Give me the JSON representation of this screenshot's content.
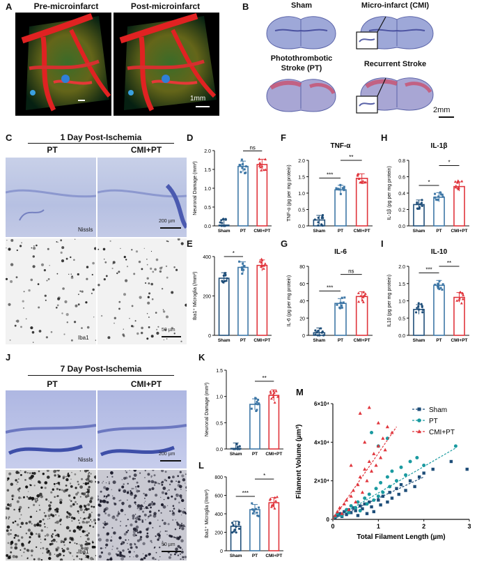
{
  "panels": {
    "A": "A",
    "B": "B",
    "C": "C",
    "D": "D",
    "E": "E",
    "F": "F",
    "G": "G",
    "H": "H",
    "I": "I",
    "J": "J",
    "K": "K",
    "L": "L",
    "M": "M"
  },
  "panel_a": {
    "title_pre": "Pre-microinfarct",
    "title_post": "Post-microinfarct",
    "scale": "1mm"
  },
  "panel_b": {
    "sham": "Sham",
    "cmi": "Micro-infarct (CMI)",
    "pt_line1": "Photothrombotic",
    "pt_line2": "Stroke (PT)",
    "recurrent": "Recurrent Stroke",
    "scale": "2mm"
  },
  "panel_c": {
    "title": "1 Day Post-Ischemia",
    "col_pt": "PT",
    "col_cmi": "CMI+PT",
    "nissl": "Nissls",
    "iba1": "Iba1",
    "scale_nissl": "200 µm",
    "scale_iba1": "50 µm"
  },
  "panel_j": {
    "title": "7 Day Post-Ischemia",
    "col_pt": "PT",
    "col_cmi": "CMI+PT",
    "nissl": "Nissls",
    "iba1": "Iba1",
    "scale_nissl": "200 µm",
    "scale_iba1": "50 µm"
  },
  "colors": {
    "sham": "#1f4e79",
    "pt": "#3e77a6",
    "cmi": "#e0353c",
    "scatter_pt": "#1a9aa0"
  },
  "bar_charts": [
    {
      "id": "D",
      "ylabel": "Neuronal Damage (mm³)",
      "title": "",
      "ylim": [
        0,
        2.0
      ],
      "ticks": [
        "0.0",
        "0.5",
        "1.0",
        "1.5",
        "2.0"
      ],
      "tickvals": [
        0,
        0.5,
        1.0,
        1.5,
        2.0
      ],
      "categories": [
        "Sham",
        "PT",
        "CMI+PT"
      ],
      "values": [
        0.02,
        1.58,
        1.63
      ],
      "sig": [
        {
          "from": 1,
          "to": 2,
          "label": "ns"
        }
      ]
    },
    {
      "id": "E",
      "ylabel": "Iba1⁺ Microglia (/mm²)",
      "title": "",
      "ylim": [
        0,
        400
      ],
      "ticks": [
        "0",
        "200",
        "400"
      ],
      "tickvals": [
        0,
        200,
        400
      ],
      "categories": [
        "Sham",
        "PT",
        "CMI+PT"
      ],
      "values": [
        290,
        345,
        355
      ],
      "sig": [
        {
          "from": 0,
          "to": 1,
          "label": "*"
        }
      ]
    },
    {
      "id": "F",
      "ylabel": "TNF-α (pg per mg protein)",
      "title": "TNF-α",
      "ylim": [
        0,
        2.0
      ],
      "ticks": [
        "0.0",
        "0.5",
        "1.0",
        "1.5",
        "2.0"
      ],
      "tickvals": [
        0,
        0.5,
        1.0,
        1.5,
        2.0
      ],
      "categories": [
        "Sham",
        "PT",
        "CMI+PT"
      ],
      "values": [
        0.18,
        1.1,
        1.45
      ],
      "sig": [
        {
          "from": 0,
          "to": 1,
          "label": "***"
        },
        {
          "from": 1,
          "to": 2,
          "label": "**"
        }
      ]
    },
    {
      "id": "G",
      "ylabel": "IL-6 (pg per mg protein)",
      "title": "IL-6",
      "ylim": [
        0,
        80
      ],
      "ticks": [
        "0",
        "20",
        "40",
        "60",
        "80"
      ],
      "tickvals": [
        0,
        20,
        40,
        60,
        80
      ],
      "categories": [
        "Sham",
        "PT",
        "CMI+PT"
      ],
      "values": [
        3,
        37,
        45
      ],
      "sig": [
        {
          "from": 0,
          "to": 1,
          "label": "***"
        },
        {
          "from": 1,
          "to": 2,
          "label": "ns"
        }
      ]
    },
    {
      "id": "H",
      "ylabel": "IL-1β (pg per mg protein)",
      "title": "IL-1β",
      "ylim": [
        0,
        0.8
      ],
      "ticks": [
        "0.0",
        "0.2",
        "0.4",
        "0.6",
        "0.8"
      ],
      "tickvals": [
        0,
        0.2,
        0.4,
        0.6,
        0.8
      ],
      "categories": [
        "Sham",
        "PT",
        "CMI+PT"
      ],
      "values": [
        0.26,
        0.35,
        0.48
      ],
      "sig": [
        {
          "from": 0,
          "to": 1,
          "label": "*"
        },
        {
          "from": 1,
          "to": 2,
          "label": "*"
        }
      ]
    },
    {
      "id": "I",
      "ylabel": "IL10 (pg per mg protein)",
      "title": "IL-10",
      "ylim": [
        0,
        2.0
      ],
      "ticks": [
        "0.0",
        "0.5",
        "1.0",
        "1.5",
        "2.0"
      ],
      "tickvals": [
        0,
        0.5,
        1.0,
        1.5,
        2.0
      ],
      "categories": [
        "Sham",
        "PT",
        "CMI+PT"
      ],
      "values": [
        0.75,
        1.45,
        1.1
      ],
      "sig": [
        {
          "from": 0,
          "to": 1,
          "label": "***"
        },
        {
          "from": 1,
          "to": 2,
          "label": "**"
        }
      ]
    },
    {
      "id": "K",
      "ylabel": "Neuronal Damage (mm³)",
      "title": "",
      "ylim": [
        0,
        1.5
      ],
      "ticks": [
        "0.0",
        "0.5",
        "1.0",
        "1.5"
      ],
      "tickvals": [
        0,
        0.5,
        1.0,
        1.5
      ],
      "categories": [
        "Sham",
        "PT",
        "CMI+PT"
      ],
      "values": [
        0.01,
        0.85,
        1.02
      ],
      "sig": [
        {
          "from": 1,
          "to": 2,
          "label": "**"
        }
      ]
    },
    {
      "id": "L",
      "ylabel": "Iba1⁺ Microglia (/mm²)",
      "title": "",
      "ylim": [
        0,
        800
      ],
      "ticks": [
        "0",
        "200",
        "400",
        "600",
        "800"
      ],
      "tickvals": [
        0,
        200,
        400,
        600,
        800
      ],
      "categories": [
        "Sham",
        "PT",
        "CMI+PT"
      ],
      "values": [
        265,
        445,
        520
      ],
      "sig": [
        {
          "from": 0,
          "to": 1,
          "label": "***"
        },
        {
          "from": 1,
          "to": 2,
          "label": "*"
        }
      ]
    }
  ],
  "chart_data": {
    "type": "scatter",
    "xlabel": "Total Filament Length (µm)",
    "ylabel": "Filament Volume (µm³)",
    "xlim": [
      0,
      3
    ],
    "ylim": [
      0,
      60000
    ],
    "xticks": [
      "0",
      "1",
      "2",
      "3"
    ],
    "xtickvals": [
      0,
      1,
      2,
      3
    ],
    "yticks": [
      "0",
      "2×10⁴",
      "4×10⁴",
      "6×10⁴"
    ],
    "ytickvals": [
      0,
      20000,
      40000,
      60000
    ],
    "legend_position": "top-right",
    "series": [
      {
        "name": "Sham",
        "marker": "square",
        "values": [
          [
            0.05,
            1000
          ],
          [
            0.1,
            2000
          ],
          [
            0.15,
            3000
          ],
          [
            0.2,
            1500
          ],
          [
            0.25,
            4000
          ],
          [
            0.3,
            2500
          ],
          [
            0.35,
            5000
          ],
          [
            0.4,
            3500
          ],
          [
            0.45,
            6000
          ],
          [
            0.5,
            4500
          ],
          [
            0.55,
            2000
          ],
          [
            0.6,
            7000
          ],
          [
            0.65,
            5500
          ],
          [
            0.7,
            8000
          ],
          [
            0.75,
            3000
          ],
          [
            0.8,
            9000
          ],
          [
            0.85,
            6500
          ],
          [
            0.9,
            4000
          ],
          [
            1.0,
            10000
          ],
          [
            1.05,
            7500
          ],
          [
            1.1,
            12000
          ],
          [
            1.2,
            9000
          ],
          [
            1.25,
            14000
          ],
          [
            1.3,
            11000
          ],
          [
            1.4,
            16000
          ],
          [
            1.45,
            13000
          ],
          [
            1.5,
            18000
          ],
          [
            1.6,
            15000
          ],
          [
            1.7,
            20000
          ],
          [
            1.8,
            17000
          ],
          [
            1.9,
            22000
          ],
          [
            2.0,
            24000
          ],
          [
            2.2,
            26000
          ],
          [
            2.6,
            30000
          ],
          [
            2.95,
            26000
          ]
        ],
        "trend": [
          [
            0,
            0
          ],
          [
            2.0,
            22000
          ]
        ]
      },
      {
        "name": "PT",
        "marker": "circle",
        "values": [
          [
            0.05,
            1500
          ],
          [
            0.1,
            3000
          ],
          [
            0.2,
            2000
          ],
          [
            0.3,
            5000
          ],
          [
            0.35,
            3500
          ],
          [
            0.4,
            7000
          ],
          [
            0.5,
            6000
          ],
          [
            0.55,
            9000
          ],
          [
            0.6,
            4500
          ],
          [
            0.7,
            11000
          ],
          [
            0.75,
            8000
          ],
          [
            0.8,
            13000
          ],
          [
            0.9,
            10000
          ],
          [
            0.95,
            16000
          ],
          [
            1.0,
            12000
          ],
          [
            1.05,
            19000
          ],
          [
            1.1,
            14000
          ],
          [
            1.2,
            22000
          ],
          [
            1.25,
            17000
          ],
          [
            1.3,
            25000
          ],
          [
            1.4,
            20000
          ],
          [
            1.5,
            27000
          ],
          [
            1.6,
            23000
          ],
          [
            1.7,
            30000
          ],
          [
            1.85,
            32000
          ],
          [
            2.0,
            28000
          ],
          [
            0.85,
            45000
          ],
          [
            1.0,
            38000
          ],
          [
            1.2,
            42000
          ],
          [
            2.7,
            38000
          ]
        ],
        "trend": [
          [
            0,
            0
          ],
          [
            2.7,
            37000
          ]
        ]
      },
      {
        "name": "CMI+PT",
        "marker": "triangle",
        "values": [
          [
            0.05,
            2000
          ],
          [
            0.1,
            4000
          ],
          [
            0.15,
            6000
          ],
          [
            0.2,
            3000
          ],
          [
            0.25,
            8000
          ],
          [
            0.3,
            10000
          ],
          [
            0.35,
            5000
          ],
          [
            0.4,
            12000
          ],
          [
            0.45,
            15000
          ],
          [
            0.5,
            9000
          ],
          [
            0.55,
            18000
          ],
          [
            0.6,
            22000
          ],
          [
            0.65,
            14000
          ],
          [
            0.7,
            26000
          ],
          [
            0.75,
            20000
          ],
          [
            0.8,
            30000
          ],
          [
            0.85,
            25000
          ],
          [
            0.9,
            34000
          ],
          [
            0.95,
            28000
          ],
          [
            1.0,
            38000
          ],
          [
            1.05,
            32000
          ],
          [
            1.1,
            42000
          ],
          [
            1.15,
            36000
          ],
          [
            1.2,
            48000
          ],
          [
            0.6,
            55000
          ],
          [
            0.8,
            58000
          ],
          [
            1.0,
            50000
          ],
          [
            1.3,
            45000
          ],
          [
            0.4,
            28000
          ],
          [
            0.7,
            40000
          ]
        ],
        "trend": [
          [
            0,
            0
          ],
          [
            1.4,
            48000
          ]
        ]
      }
    ]
  }
}
